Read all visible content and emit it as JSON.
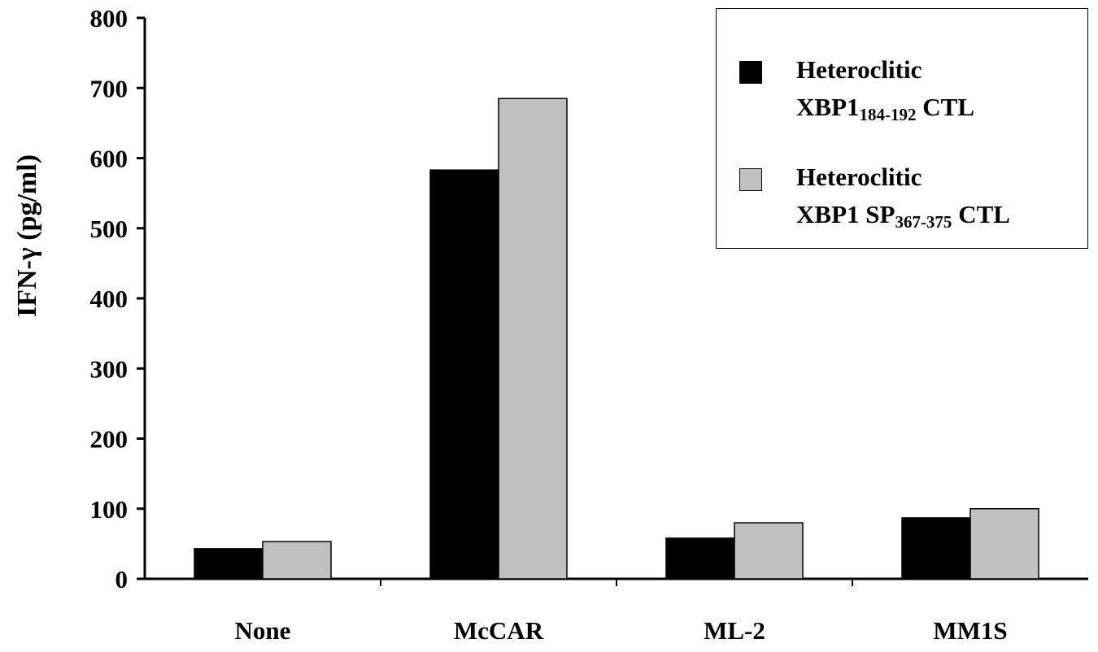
{
  "chart_data": {
    "type": "bar",
    "ylabel": "IFN-γ (pg/ml)",
    "xlabel": "",
    "ylim": [
      0,
      800
    ],
    "yticks": [
      "0",
      "100",
      "200",
      "300",
      "400",
      "500",
      "600",
      "700",
      "800"
    ],
    "categories": [
      "None",
      "McCAR",
      "ML-2",
      "MM1S"
    ],
    "series": [
      {
        "line1": "Heteroclitic",
        "line2_pre": "XBP1",
        "line2_sub": "184-192",
        "line2_post": " CTL",
        "color": "#000000",
        "values": [
          43,
          583,
          58,
          87
        ]
      },
      {
        "line1": "Heteroclitic",
        "line2_pre": "XBP1 SP",
        "line2_sub": "367-375",
        "line2_post": " CTL",
        "color": "#c0c0c0",
        "values": [
          53,
          685,
          80,
          100
        ]
      }
    ],
    "legend_position": "top-right",
    "grid": false
  }
}
